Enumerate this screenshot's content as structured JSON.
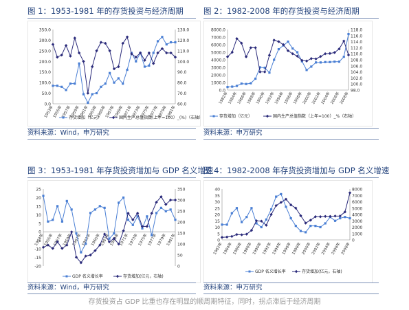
{
  "colors": {
    "series_a": "#4a7fd4",
    "series_b": "#2a2a7a",
    "header_line": "#7a8fb5",
    "caption": "#999999"
  },
  "headers": [
    "图 1：1953-1981 年的存货投资与经济周期",
    "图 2：1982-2008 年的存货投资与经济周期",
    "图 3：1953-1981 年存货投资增加与 GDP 名义增速",
    "图 4：1982-2008 年存货投资增加与 GDP 名义增速"
  ],
  "sources": [
    "资料来源：Wind，申万研究",
    "资料来源：申万研究",
    "资料来源：Wind，申万研究",
    "资料来源：申万研究"
  ],
  "footer_caption": "存货投资占 GDP 比重也存在明显的顺周期特征，同时，拐点滞后于经济周期",
  "chart_data": [
    {
      "type": "line",
      "y_ticks": [
        "0.0",
        "50.0",
        "100.0",
        "150.0",
        "200.0",
        "250.0",
        "300.0",
        "350.0"
      ],
      "y2_ticks": [
        "60.0",
        "70.0",
        "80.0",
        "90.0",
        "100.0",
        "110.0",
        "120.0",
        "130.0"
      ],
      "x_ticks": [
        "1953年",
        "1955年",
        "1957年",
        "1959年",
        "1961年",
        "1963年",
        "1965年",
        "1967年",
        "1969年",
        "1971年",
        "1973年",
        "1975年",
        "1977年",
        "1979年",
        "1981年"
      ],
      "ylim": [
        0,
        350
      ],
      "y2lim": [
        60,
        130
      ],
      "x": [
        1953,
        1954,
        1955,
        1956,
        1957,
        1958,
        1959,
        1960,
        1961,
        1962,
        1963,
        1964,
        1965,
        1966,
        1967,
        1968,
        1969,
        1970,
        1971,
        1972,
        1973,
        1974,
        1975,
        1976,
        1977,
        1978,
        1979,
        1980,
        1981
      ],
      "series": [
        {
          "name": "存货增加（亿元）",
          "axis": "left",
          "values": [
            85,
            85,
            80,
            65,
            95,
            95,
            190,
            45,
            5,
            45,
            50,
            80,
            95,
            145,
            100,
            120,
            95,
            160,
            240,
            200,
            240,
            175,
            180,
            240,
            295,
            315,
            280,
            290,
            290
          ]
        },
        {
          "name": "国内生产总值指数(上年=100）_(%)（右轴）",
          "axis": "right",
          "values": [
            116,
            104,
            106,
            115,
            105,
            122,
            108,
            100,
            70,
            95,
            110,
            118,
            117,
            110,
            93,
            95,
            117,
            123,
            107,
            104,
            108,
            101,
            108,
            98,
            108,
            112,
            108,
            108,
            104
          ]
        }
      ]
    },
    {
      "type": "line",
      "y_ticks": [
        "0.0",
        "1000.0",
        "2000.0",
        "3000.0",
        "4000.0",
        "5000.0",
        "6000.0",
        "7000.0",
        "8000.0"
      ],
      "y2_ticks": [
        "98.0",
        "100.0",
        "102.0",
        "104.0",
        "106.0",
        "108.0",
        "110.0",
        "112.0",
        "114.0",
        "116.0",
        "118.0"
      ],
      "x_ticks": [
        "1982年",
        "1984年",
        "1986年",
        "1988年",
        "1990年",
        "1992年",
        "1994年",
        "1996年",
        "1998年",
        "2000年",
        "2002年",
        "2004年",
        "2006年",
        "2008年"
      ],
      "ylim": [
        0,
        8000
      ],
      "y2lim": [
        98,
        118
      ],
      "x": [
        1982,
        1983,
        1984,
        1985,
        1986,
        1987,
        1988,
        1989,
        1990,
        1991,
        1992,
        1993,
        1994,
        1995,
        1996,
        1997,
        1998,
        1999,
        2000,
        2001,
        2002,
        2003,
        2004,
        2005,
        2006,
        2007,
        2008
      ],
      "series": [
        {
          "name": "存货增加（亿元）",
          "axis": "left",
          "values": [
            400,
            450,
            550,
            850,
            800,
            900,
            1500,
            3000,
            2950,
            2300,
            4000,
            5400,
            5900,
            6400,
            5500,
            5000,
            3800,
            2650,
            3100,
            3650,
            3650,
            3700,
            3700,
            3750,
            3750,
            4400,
            7400
          ]
        },
        {
          "name": "国内生产总值指数（上年=100）_%（右轴）",
          "axis": "right",
          "values": [
            109,
            110.5,
            115,
            113.5,
            109,
            112,
            112,
            104,
            104,
            109.5,
            114.5,
            114,
            113,
            111,
            110,
            109.2,
            107.8,
            107.6,
            108.4,
            108.3,
            109.1,
            110,
            110.1,
            110.4,
            111.6,
            114.2,
            109.6
          ]
        }
      ]
    },
    {
      "type": "line",
      "y_ticks": [
        "-20",
        "-15",
        "-10",
        "-5",
        "0",
        "5",
        "10",
        "15",
        "20",
        "25"
      ],
      "y2_ticks": [
        "0",
        "50",
        "100",
        "150",
        "200",
        "250",
        "300",
        "350"
      ],
      "x_ticks": [
        "1953年",
        "1955年",
        "1957年",
        "1959年",
        "1961年",
        "1963年",
        "1965年",
        "1967年",
        "1969年",
        "1971年",
        "1973年",
        "1975年",
        "1977年",
        "1979年",
        "1981年"
      ],
      "ylim": [
        -20,
        25
      ],
      "y2lim": [
        0,
        350
      ],
      "x": [
        1953,
        1954,
        1955,
        1956,
        1957,
        1958,
        1959,
        1960,
        1961,
        1962,
        1963,
        1964,
        1965,
        1966,
        1967,
        1968,
        1969,
        1970,
        1971,
        1972,
        1973,
        1974,
        1975,
        1976,
        1977,
        1978,
        1979,
        1980,
        1981
      ],
      "series": [
        {
          "name": "GDP 名义增长率",
          "axis": "left",
          "values": [
            21,
            6,
            7,
            15,
            6,
            18,
            13,
            -1,
            -12,
            -7,
            11,
            13,
            15,
            14,
            -4,
            -1,
            17,
            20,
            7,
            4,
            9,
            2,
            9,
            -2,
            11,
            14,
            12,
            13,
            7
          ]
        },
        {
          "name": "存货增加(亿元，右轴)",
          "axis": "right",
          "values": [
            85,
            95,
            80,
            110,
            80,
            95,
            155,
            40,
            15,
            45,
            50,
            70,
            95,
            145,
            110,
            125,
            100,
            160,
            240,
            210,
            240,
            180,
            180,
            240,
            290,
            315,
            280,
            300,
            300
          ]
        }
      ]
    },
    {
      "type": "line",
      "y_ticks": [
        "0",
        "5",
        "10",
        "15",
        "20",
        "25",
        "30",
        "35",
        "40"
      ],
      "y2_ticks": [
        "0",
        "1000",
        "2000",
        "3000",
        "4000",
        "5000",
        "6000",
        "7000",
        "8000"
      ],
      "x_ticks": [
        "1982年",
        "1984年",
        "1986年",
        "1988年",
        "1990年",
        "1992年",
        "1994年",
        "1996年",
        "1998年",
        "2000年",
        "2002年",
        "2004年",
        "2006年",
        "2008年"
      ],
      "ylim": [
        0,
        40
      ],
      "y2lim": [
        0,
        8000
      ],
      "x": [
        1982,
        1983,
        1984,
        1985,
        1986,
        1987,
        1988,
        1989,
        1990,
        1991,
        1992,
        1993,
        1994,
        1995,
        1996,
        1997,
        1998,
        1999,
        2000,
        2001,
        2002,
        2003,
        2004,
        2005,
        2006,
        2007,
        2008
      ],
      "series": [
        {
          "name": "GDP 名义增长率",
          "axis": "left",
          "values": [
            12,
            12,
            21,
            25,
            14,
            18,
            25,
            13,
            10,
            16,
            24,
            34,
            36,
            26,
            17,
            11,
            7,
            6,
            11,
            11,
            10,
            13,
            18,
            15,
            17,
            18,
            17
          ]
        },
        {
          "name": "存货增加(亿元，右轴)",
          "axis": "right",
          "values": [
            400,
            450,
            550,
            850,
            800,
            900,
            1500,
            3000,
            2950,
            2300,
            4000,
            5400,
            5900,
            6400,
            5500,
            5000,
            3800,
            2650,
            3100,
            3650,
            3650,
            3700,
            3700,
            3750,
            3750,
            4400,
            7400
          ]
        }
      ]
    }
  ]
}
